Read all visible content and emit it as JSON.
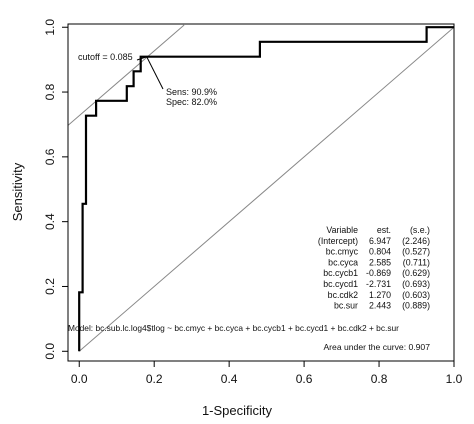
{
  "chart_data": {
    "type": "line",
    "xlabel": "1-Specificity",
    "ylabel": "Sensitivity",
    "xlim": [
      -0.03,
      1.0
    ],
    "ylim": [
      -0.03,
      1.01
    ],
    "xticks": [
      "0.0",
      "0.2",
      "0.4",
      "0.6",
      "0.8",
      "1.0"
    ],
    "yticks": [
      "0.0",
      "0.2",
      "0.4",
      "0.6",
      "0.8",
      "1.0"
    ],
    "xtick_values": [
      0,
      0.2,
      0.4,
      0.6,
      0.8,
      1.0
    ],
    "ytick_values": [
      0,
      0.2,
      0.4,
      0.6,
      0.8,
      1.0
    ],
    "roc_x": [
      0,
      0,
      0.009,
      0.009,
      0.018,
      0.018,
      0.045,
      0.045,
      0.127,
      0.127,
      0.145,
      0.145,
      0.164,
      0.164,
      0.182,
      0.182,
      0.482,
      0.482,
      0.927,
      0.927,
      1.0
    ],
    "roc_y": [
      0,
      0.182,
      0.182,
      0.455,
      0.455,
      0.727,
      0.727,
      0.773,
      0.773,
      0.818,
      0.818,
      0.864,
      0.864,
      0.909,
      0.909,
      0.909,
      0.909,
      0.955,
      0.955,
      1.0,
      1.0
    ],
    "reference_lines": [
      {
        "from": [
          0,
          0
        ],
        "to": [
          1,
          1
        ]
      },
      {
        "from": [
          -0.03,
          0.697
        ],
        "to": [
          0.28,
          1.007
        ]
      }
    ],
    "cutoff_label": "cutoff = 0.085",
    "cutoff_point": [
      0.18,
      0.909
    ],
    "sens_label": "Sens: 90.9%",
    "spec_label": "Spec: 82.0%",
    "table": {
      "headers": [
        "Variable",
        "est.",
        "(s.e.)"
      ],
      "rows": [
        [
          "(Intercept)",
          "6.947",
          "(2.246)"
        ],
        [
          "bc.cmyc",
          "0.804",
          "(0.527)"
        ],
        [
          "bc.cyca",
          "2.585",
          "(0.711)"
        ],
        [
          "bc.cycb1",
          "-0.869",
          "(0.629)"
        ],
        [
          "bc.cycd1",
          "-2.731",
          "(0.693)"
        ],
        [
          "bc.cdk2",
          "1.270",
          "(0.603)"
        ],
        [
          "bc.sur",
          "2.443",
          "(0.889)"
        ]
      ]
    },
    "model_label": "Model:  bc.sub.lc.log4$tlog ~ bc.cmyc + bc.cyca + bc.cycb1 + bc.cycd1 + bc.cdk2 + bc.sur",
    "auc_label": "Area under the curve: 0.907",
    "grid": false
  }
}
